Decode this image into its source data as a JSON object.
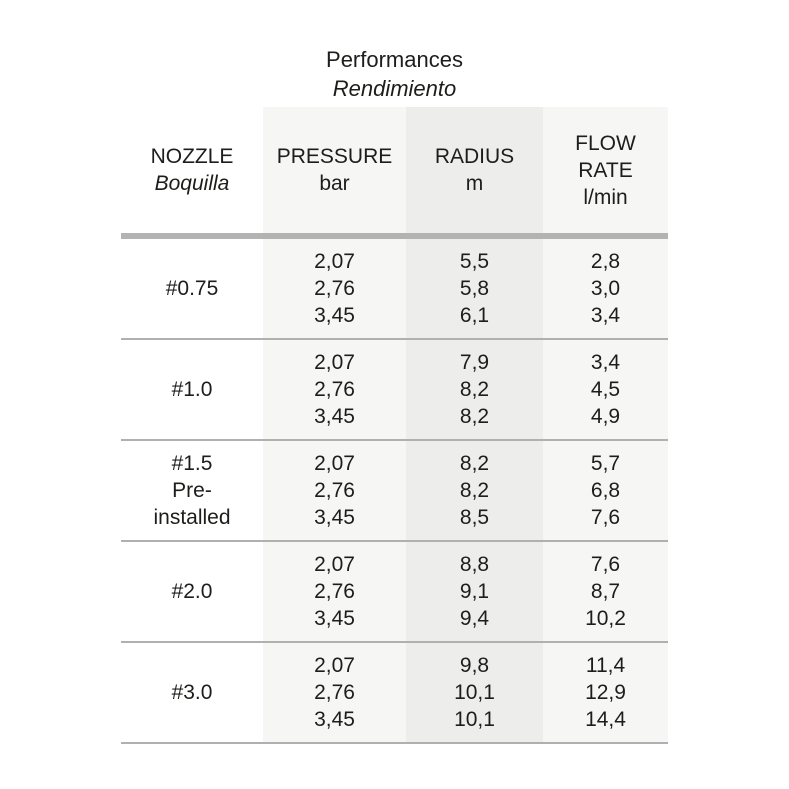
{
  "title": {
    "en": "Performances",
    "es": "Rendimiento"
  },
  "table": {
    "columns": [
      {
        "lines": [
          "NOZZLE"
        ],
        "sub": "Boquilla"
      },
      {
        "lines": [
          "PRESSURE"
        ],
        "sub": "bar"
      },
      {
        "lines": [
          "RADIUS"
        ],
        "sub": "m"
      },
      {
        "lines": [
          "FLOW",
          "RATE"
        ],
        "sub": "l/min"
      }
    ],
    "groups": [
      {
        "nozzle_lines": [
          "#0.75"
        ],
        "rows": [
          {
            "pressure": "2,07",
            "radius": "5,5",
            "flow": "2,8"
          },
          {
            "pressure": "2,76",
            "radius": "5,8",
            "flow": "3,0"
          },
          {
            "pressure": "3,45",
            "radius": "6,1",
            "flow": "3,4"
          }
        ]
      },
      {
        "nozzle_lines": [
          "#1.0"
        ],
        "rows": [
          {
            "pressure": "2,07",
            "radius": "7,9",
            "flow": "3,4"
          },
          {
            "pressure": "2,76",
            "radius": "8,2",
            "flow": "4,5"
          },
          {
            "pressure": "3,45",
            "radius": "8,2",
            "flow": "4,9"
          }
        ]
      },
      {
        "nozzle_lines": [
          "#1.5",
          "Pre-",
          "installed"
        ],
        "rows": [
          {
            "pressure": "2,07",
            "radius": "8,2",
            "flow": "5,7"
          },
          {
            "pressure": "2,76",
            "radius": "8,2",
            "flow": "6,8"
          },
          {
            "pressure": "3,45",
            "radius": "8,5",
            "flow": "7,6"
          }
        ]
      },
      {
        "nozzle_lines": [
          "#2.0"
        ],
        "rows": [
          {
            "pressure": "2,07",
            "radius": "8,8",
            "flow": "7,6"
          },
          {
            "pressure": "2,76",
            "radius": "9,1",
            "flow": "8,7"
          },
          {
            "pressure": "3,45",
            "radius": "9,4",
            "flow": "10,2"
          }
        ]
      },
      {
        "nozzle_lines": [
          "#3.0"
        ],
        "rows": [
          {
            "pressure": "2,07",
            "radius": "9,8",
            "flow": "11,4"
          },
          {
            "pressure": "2,76",
            "radius": "10,1",
            "flow": "12,9"
          },
          {
            "pressure": "3,45",
            "radius": "10,1",
            "flow": "14,4"
          }
        ]
      }
    ],
    "colors": {
      "text": "#1d1d1b",
      "shade_light": "#f6f6f5",
      "shade_mid": "#ededec",
      "rule_thin": "#b0b0b0",
      "rule_thick": "#b3b3b3"
    }
  }
}
